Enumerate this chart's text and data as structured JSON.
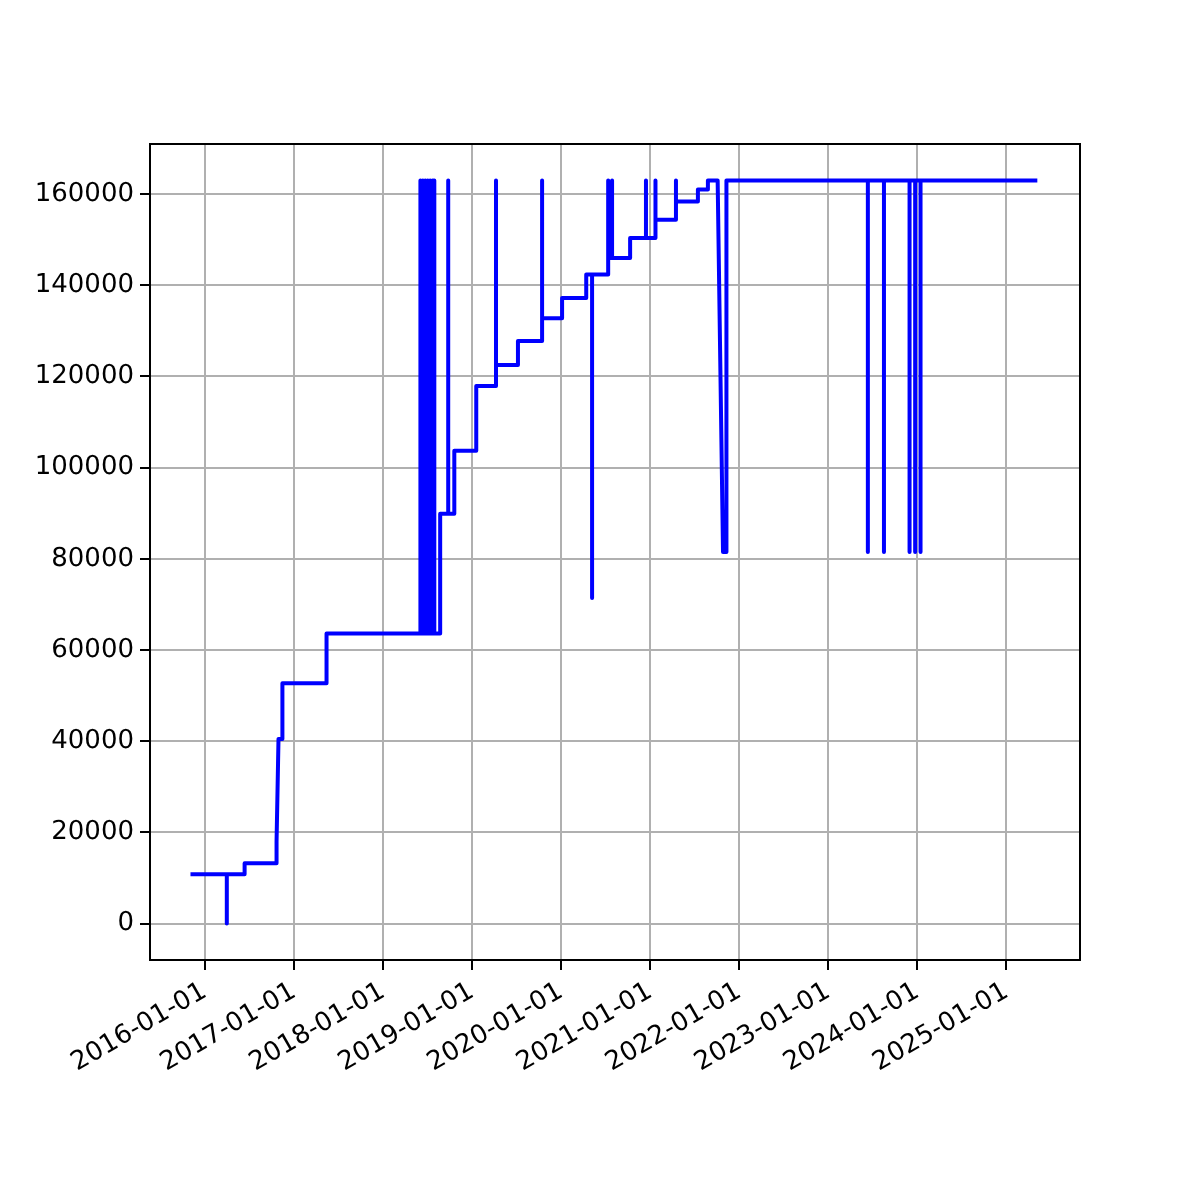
{
  "chart_data": {
    "type": "line",
    "color": "#0000ff",
    "x": [
      "2015-11-04",
      "2016-04-01",
      "2016-04-01",
      "2016-04-01",
      "2016-06-13",
      "2016-06-13",
      "2016-10-22",
      "2016-10-22",
      "2016-10-30",
      "2016-11-15",
      "2016-11-15",
      "2017-05-15",
      "2017-05-15",
      "2018-06-04",
      "2018-06-04",
      "2018-06-04",
      "2018-06-14",
      "2018-06-14",
      "2018-06-24",
      "2018-06-24",
      "2018-07-04",
      "2018-07-04",
      "2018-07-14",
      "2018-07-14",
      "2018-07-24",
      "2018-07-24",
      "2018-07-31",
      "2018-07-31",
      "2018-08-24",
      "2018-08-24",
      "2018-09-26",
      "2018-09-26",
      "2018-09-26",
      "2018-10-21",
      "2018-10-21",
      "2019-01-19",
      "2019-01-19",
      "2019-04-10",
      "2019-04-10",
      "2019-04-10",
      "2019-07-09",
      "2019-07-09",
      "2019-10-16",
      "2019-10-16",
      "2019-10-16",
      "2020-01-06",
      "2020-01-06",
      "2020-04-14",
      "2020-04-14",
      "2020-05-08",
      "2020-05-08",
      "2020-05-08",
      "2020-07-13",
      "2020-07-13",
      "2020-07-13",
      "2020-07-29",
      "2020-07-29",
      "2020-07-29",
      "2020-10-11",
      "2020-10-11",
      "2020-12-15",
      "2020-12-15",
      "2020-12-15",
      "2021-01-17",
      "2021-01-17",
      "2021-01-25",
      "2021-01-25",
      "2021-01-25",
      "2021-04-17",
      "2021-04-17",
      "2021-04-17",
      "2021-07-16",
      "2021-07-16",
      "2021-08-26",
      "2021-08-26",
      "2021-10-05",
      "2021-10-27",
      "2021-11-10",
      "2021-11-10",
      "2023-06-13",
      "2023-06-13",
      "2023-06-13",
      "2023-08-18",
      "2023-08-18",
      "2023-08-18",
      "2023-12-01",
      "2023-12-01",
      "2023-12-01",
      "2023-12-24",
      "2023-12-24",
      "2023-12-24",
      "2024-01-15",
      "2024-01-15",
      "2024-01-15",
      "2025-05-08"
    ],
    "values": [
      10800,
      10800,
      0,
      10800,
      10800,
      13200,
      13200,
      18000,
      40500,
      40500,
      52700,
      52700,
      63600,
      63600,
      163000,
      63600,
      163000,
      63600,
      163000,
      63600,
      163000,
      63600,
      163000,
      63600,
      163000,
      63600,
      163000,
      63600,
      63600,
      89900,
      89900,
      163000,
      89900,
      89900,
      103700,
      103700,
      117900,
      117900,
      163000,
      122500,
      122500,
      127800,
      127800,
      163000,
      132800,
      132800,
      137200,
      137200,
      142400,
      142400,
      71400,
      142400,
      142400,
      163000,
      146000,
      146000,
      163000,
      146000,
      146000,
      150400,
      150400,
      163000,
      150400,
      150400,
      154400,
      154400,
      163000,
      154400,
      154400,
      163000,
      158400,
      158400,
      161000,
      161000,
      163000,
      163000,
      81500,
      81500,
      163000,
      163000,
      81500,
      163000,
      163000,
      81500,
      163000,
      163000,
      81500,
      163000,
      163000,
      81500,
      163000,
      163000,
      81500,
      163000,
      163000
    ],
    "xlim": [
      "2015-05-22",
      "2025-10-30"
    ],
    "xticks": [
      "2016-01-01",
      "2017-01-01",
      "2018-01-01",
      "2019-01-01",
      "2020-01-01",
      "2021-01-01",
      "2022-01-01",
      "2023-01-01",
      "2024-01-01",
      "2025-01-01"
    ],
    "ylim": [
      -8000,
      171000
    ],
    "yticks": [
      0,
      20000,
      40000,
      60000,
      80000,
      100000,
      120000,
      140000,
      160000
    ],
    "grid": true
  }
}
